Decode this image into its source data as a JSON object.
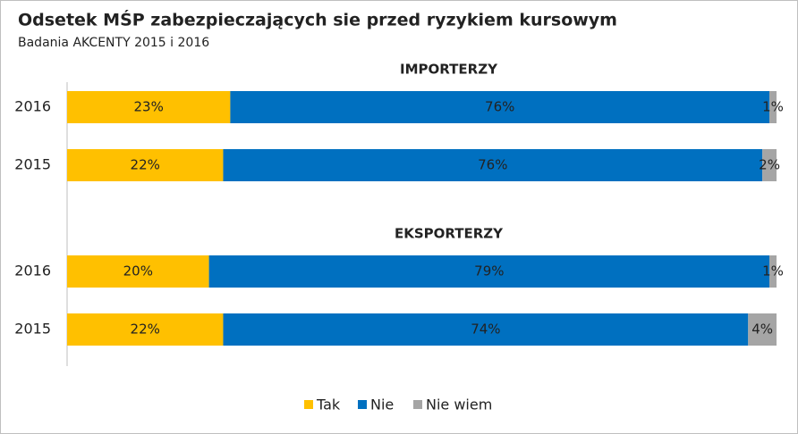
{
  "title": "Odsetek MŚP zabezpieczających sie przed ryzykiem kursowym",
  "subtitle": "Badania AKCENTY 2015 i 2016",
  "chart_data": [
    {
      "type": "stacked-bar",
      "title": "IMPORTERZY",
      "categories": [
        "2016",
        "2015"
      ],
      "series": [
        {
          "name": "Tak",
          "color": "#FFC000",
          "values": [
            23,
            22
          ],
          "value_labels": [
            "23%",
            "22%"
          ]
        },
        {
          "name": "Nie",
          "color": "#0070C0",
          "values": [
            76,
            76
          ],
          "value_labels": [
            "76%",
            "76%"
          ]
        },
        {
          "name": "Nie wiem",
          "color": "#A5A5A5",
          "values": [
            1,
            2
          ],
          "value_labels": [
            "1%",
            "2%"
          ]
        }
      ]
    },
    {
      "type": "stacked-bar",
      "title": "EKSPORTERZY",
      "categories": [
        "2016",
        "2015"
      ],
      "series": [
        {
          "name": "Tak",
          "color": "#FFC000",
          "values": [
            20,
            22
          ],
          "value_labels": [
            "20%",
            "22%"
          ]
        },
        {
          "name": "Nie",
          "color": "#0070C0",
          "values": [
            79,
            74
          ],
          "value_labels": [
            "79%",
            "74%"
          ]
        },
        {
          "name": "Nie wiem",
          "color": "#A5A5A5",
          "values": [
            1,
            4
          ],
          "value_labels": [
            "1%",
            "4%"
          ]
        }
      ]
    }
  ]
}
